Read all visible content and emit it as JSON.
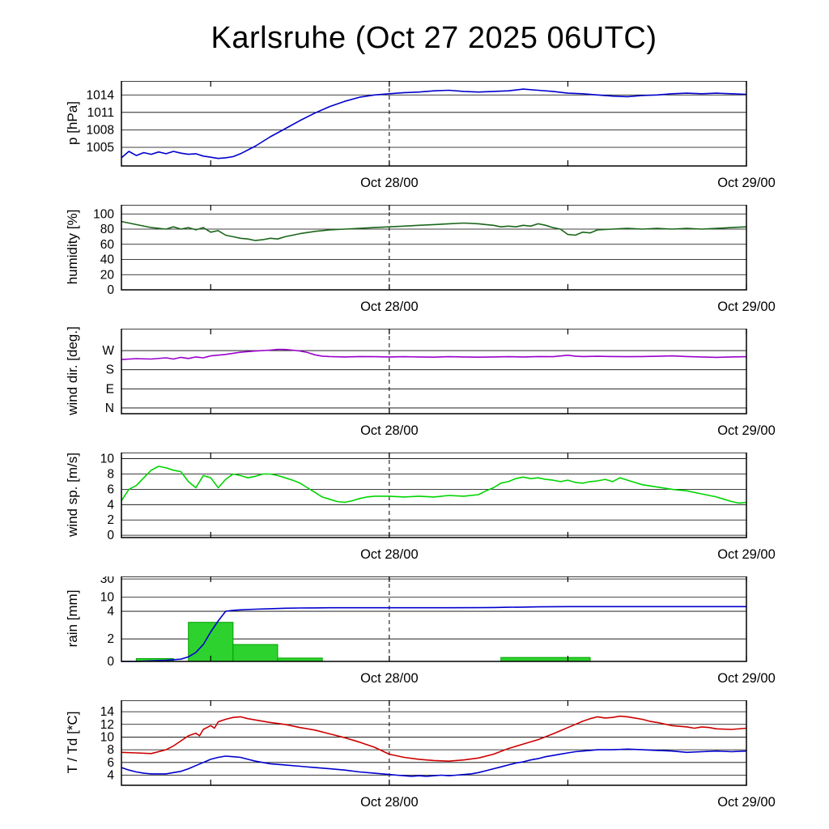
{
  "title": "Karlsruhe (Oct 27 2025 06UTC)",
  "x_axis": {
    "start_hour": 0,
    "end_hour": 42,
    "tick_hours": [
      6,
      18,
      30,
      42
    ],
    "dashed_line_hour": 18,
    "labels": [
      {
        "hour": 18,
        "text": "Oct 28/00"
      },
      {
        "hour": 42,
        "text": "Oct 29/00"
      }
    ]
  },
  "chart_data": [
    {
      "name": "pressure",
      "type": "line",
      "ylabel": "p [hPa]",
      "ylim": [
        1001.8,
        1016.4
      ],
      "yticks": [
        1005,
        1008,
        1011,
        1014
      ],
      "series": [
        {
          "name": "pressure",
          "color": "#0000cd",
          "x": [
            0,
            0.5,
            1,
            1.5,
            2,
            2.5,
            3,
            3.5,
            4,
            4.5,
            5,
            5.5,
            6,
            6.5,
            7,
            7.5,
            8,
            9,
            10,
            11,
            12,
            13,
            14,
            15,
            16,
            17,
            18,
            19,
            20,
            21,
            22,
            23,
            24,
            25,
            26,
            27,
            28,
            29,
            30,
            31,
            32,
            33,
            34,
            35,
            36,
            37,
            38,
            39,
            40,
            41,
            42
          ],
          "values": [
            1003.2,
            1004.3,
            1003.6,
            1004.1,
            1003.8,
            1004.2,
            1003.9,
            1004.3,
            1004.0,
            1003.8,
            1003.9,
            1003.5,
            1003.3,
            1003.1,
            1003.2,
            1003.4,
            1003.9,
            1005.2,
            1006.8,
            1008.2,
            1009.6,
            1010.9,
            1012.0,
            1012.9,
            1013.6,
            1014.0,
            1014.2,
            1014.4,
            1014.5,
            1014.7,
            1014.8,
            1014.6,
            1014.5,
            1014.6,
            1014.7,
            1015.0,
            1014.8,
            1014.6,
            1014.3,
            1014.2,
            1014.0,
            1013.8,
            1013.7,
            1013.9,
            1014.0,
            1014.2,
            1014.3,
            1014.2,
            1014.3,
            1014.2,
            1014.1
          ]
        }
      ]
    },
    {
      "name": "humidity",
      "type": "line",
      "ylabel": "humidity [%]",
      "ylim": [
        0,
        112
      ],
      "yticks": [
        0,
        20,
        40,
        60,
        80,
        100
      ],
      "series": [
        {
          "name": "humidity",
          "color": "#1a661a",
          "x": [
            0,
            1,
            2,
            3,
            3.5,
            4,
            4.5,
            5,
            5.5,
            6,
            6.5,
            7,
            7.5,
            8,
            8.5,
            9,
            9.5,
            10,
            10.5,
            11,
            12,
            13,
            14,
            15,
            16,
            17,
            18,
            19,
            20,
            21,
            22,
            23,
            24,
            24.5,
            25,
            25.5,
            26,
            26.5,
            27,
            27.5,
            28,
            28.5,
            29,
            29.5,
            30,
            30.5,
            31,
            31.5,
            32,
            33,
            34,
            35,
            36,
            37,
            38,
            39,
            40,
            41,
            42
          ],
          "values": [
            90,
            86,
            82,
            80,
            83,
            80,
            82,
            79,
            82,
            76,
            78,
            72,
            70,
            68,
            67,
            65,
            66,
            68,
            67,
            70,
            74,
            77,
            79,
            80,
            81,
            82,
            83,
            84,
            85,
            86,
            87,
            88,
            87,
            86,
            85,
            83,
            84,
            83,
            85,
            84,
            87,
            85,
            82,
            80,
            73,
            72,
            76,
            75,
            79,
            80,
            81,
            80,
            81,
            80,
            81,
            80,
            81,
            82,
            83
          ]
        }
      ]
    },
    {
      "name": "wind-direction",
      "type": "line",
      "ylabel": "wind dir. [deg.]",
      "ylim": [
        -27,
        373
      ],
      "yticks": [
        0,
        90,
        180,
        270
      ],
      "ytick_labels": [
        "N",
        "E",
        "S",
        "W"
      ],
      "series": [
        {
          "name": "wind-direction",
          "color": "#9900cc",
          "x": [
            0,
            1,
            2,
            3,
            3.5,
            4,
            4.5,
            5,
            5.5,
            6,
            7,
            8,
            9,
            10,
            10.5,
            11,
            11.5,
            12,
            12.5,
            13,
            13.5,
            14,
            15,
            16,
            17,
            18,
            19,
            20,
            21,
            22,
            23,
            24,
            25,
            26,
            27,
            28,
            29,
            30,
            30.5,
            31,
            32,
            33,
            34,
            35,
            36,
            37,
            38,
            39,
            40,
            41,
            42
          ],
          "values": [
            228,
            232,
            230,
            236,
            230,
            238,
            233,
            240,
            236,
            245,
            252,
            262,
            268,
            272,
            276,
            275,
            272,
            268,
            261,
            250,
            244,
            242,
            240,
            242,
            241,
            240,
            241,
            240,
            239,
            241,
            240,
            239,
            240,
            241,
            240,
            242,
            241,
            248,
            244,
            242,
            243,
            242,
            241,
            242,
            243,
            245,
            242,
            240,
            238,
            240,
            241
          ]
        }
      ]
    },
    {
      "name": "wind-speed",
      "type": "line",
      "ylabel": "wind sp. [m/s]",
      "ylim": [
        -0.3,
        10.8
      ],
      "yticks": [
        0,
        2,
        4,
        6,
        8,
        10
      ],
      "series": [
        {
          "name": "wind-speed",
          "color": "#00d400",
          "x": [
            0,
            0.5,
            1,
            1.5,
            2,
            2.5,
            3,
            3.5,
            4,
            4.5,
            5,
            5.5,
            6,
            6.5,
            7,
            7.5,
            8,
            8.5,
            9,
            9.5,
            10,
            10.5,
            11,
            11.5,
            12,
            12.5,
            13,
            13.5,
            14,
            14.5,
            15,
            15.5,
            16,
            16.5,
            17,
            18,
            19,
            20,
            21,
            22,
            23,
            24,
            24.5,
            25,
            25.5,
            26,
            26.5,
            27,
            27.5,
            28,
            28.5,
            29,
            29.5,
            30,
            30.5,
            31,
            31.5,
            32,
            32.5,
            33,
            33.5,
            34,
            34.5,
            35,
            36,
            37,
            38,
            39,
            40,
            40.5,
            41,
            41.5,
            42
          ],
          "values": [
            4.5,
            6.0,
            6.5,
            7.5,
            8.5,
            9.0,
            8.8,
            8.5,
            8.3,
            7.0,
            6.2,
            7.8,
            7.5,
            6.2,
            7.3,
            8.0,
            7.8,
            7.5,
            7.7,
            8.0,
            8.0,
            7.8,
            7.5,
            7.2,
            6.8,
            6.2,
            5.6,
            5.0,
            4.7,
            4.4,
            4.3,
            4.5,
            4.8,
            5.0,
            5.1,
            5.1,
            5.0,
            5.1,
            5.0,
            5.2,
            5.1,
            5.3,
            5.8,
            6.2,
            6.8,
            7.0,
            7.4,
            7.6,
            7.4,
            7.5,
            7.3,
            7.2,
            7.0,
            7.2,
            6.9,
            6.8,
            7.0,
            7.1,
            7.3,
            7.0,
            7.5,
            7.2,
            6.9,
            6.6,
            6.3,
            6.0,
            5.8,
            5.4,
            5.0,
            4.7,
            4.4,
            4.2,
            4.3
          ]
        }
      ]
    },
    {
      "name": "rain",
      "type": "line+bar",
      "ylabel": "rain [mm]",
      "yticks": [
        0,
        2,
        4,
        10,
        30
      ],
      "scale_anchors": {
        "values": [
          0,
          2,
          4,
          10,
          30
        ],
        "fracs": [
          0,
          0.265,
          0.59,
          0.755,
          0.97
        ]
      },
      "bar_color": "#2ed22e",
      "bar_edge": "#00a000",
      "bars": [
        {
          "from_hour": 1,
          "to_hour": 3.5,
          "value": 0.25
        },
        {
          "from_hour": 4.5,
          "to_hour": 7.5,
          "value": 3.2
        },
        {
          "from_hour": 7.5,
          "to_hour": 10.5,
          "value": 1.5
        },
        {
          "from_hour": 10.5,
          "to_hour": 13.5,
          "value": 0.3
        },
        {
          "from_hour": 25.5,
          "to_hour": 31.5,
          "value": 0.35
        }
      ],
      "series": [
        {
          "name": "rain-accumulated",
          "color": "#0000cd",
          "x": [
            0,
            1,
            2,
            3,
            4,
            4.5,
            5,
            5.5,
            6,
            6.5,
            7,
            7.5,
            8,
            9,
            10,
            11,
            12,
            13,
            14,
            16,
            18,
            20,
            22,
            24,
            25,
            26,
            27,
            28,
            29,
            30,
            32,
            34,
            36,
            38,
            40,
            42
          ],
          "values": [
            0,
            0,
            0.05,
            0.1,
            0.2,
            0.4,
            0.8,
            1.5,
            2.5,
            3.3,
            4.0,
            4.4,
            4.6,
            4.9,
            5.1,
            5.3,
            5.4,
            5.45,
            5.5,
            5.5,
            5.5,
            5.5,
            5.5,
            5.55,
            5.6,
            5.7,
            5.8,
            5.9,
            5.95,
            6.0,
            6.0,
            6.0,
            6.0,
            6.0,
            6.0,
            6.0
          ]
        }
      ]
    },
    {
      "name": "temperature-dewpoint",
      "type": "line",
      "ylabel": "T / Td [*C]",
      "ylim": [
        2.4,
        15.8
      ],
      "yticks": [
        4,
        6,
        8,
        10,
        12,
        14
      ],
      "series": [
        {
          "name": "temperature",
          "color": "#cc0000",
          "x": [
            0,
            1,
            2,
            3,
            3.5,
            4,
            4.5,
            5,
            5.25,
            5.5,
            6,
            6.25,
            6.5,
            7,
            7.5,
            8,
            8.5,
            9,
            10,
            11,
            12,
            13,
            14,
            15,
            16,
            17,
            18,
            19,
            20,
            21,
            22,
            23,
            24,
            25,
            26,
            27,
            28,
            29,
            29.5,
            30,
            30.5,
            31,
            31.5,
            32,
            32.5,
            33,
            33.5,
            34,
            34.5,
            35,
            35.5,
            36,
            37,
            38,
            38.5,
            39,
            39.5,
            40,
            41,
            42
          ],
          "values": [
            7.6,
            7.5,
            7.4,
            8.0,
            8.6,
            9.4,
            10.2,
            10.6,
            10.2,
            11.2,
            11.8,
            11.4,
            12.4,
            12.8,
            13.1,
            13.2,
            12.9,
            12.7,
            12.3,
            12.0,
            11.5,
            11.1,
            10.5,
            9.9,
            9.2,
            8.4,
            7.3,
            6.8,
            6.5,
            6.3,
            6.2,
            6.4,
            6.7,
            7.3,
            8.2,
            8.9,
            9.6,
            10.5,
            11.0,
            11.5,
            12.0,
            12.5,
            12.9,
            13.2,
            13.0,
            13.1,
            13.3,
            13.2,
            13.0,
            12.8,
            12.5,
            12.3,
            11.8,
            11.6,
            11.4,
            11.6,
            11.5,
            11.3,
            11.2,
            11.4
          ]
        },
        {
          "name": "dewpoint",
          "color": "#0000cd",
          "x": [
            0,
            0.5,
            1,
            1.5,
            2,
            3,
            3.5,
            4,
            4.5,
            5,
            5.5,
            6,
            6.5,
            7,
            7.5,
            8,
            8.5,
            9,
            9.5,
            10,
            11,
            12,
            13,
            14,
            15,
            16,
            17,
            18,
            18.5,
            19,
            19.5,
            20,
            20.5,
            21,
            21.5,
            22,
            22.5,
            23,
            23.5,
            24,
            24.5,
            25,
            25.5,
            26,
            26.5,
            27,
            27.5,
            28,
            28.5,
            29,
            29.5,
            30,
            30.5,
            31,
            31.5,
            32,
            33,
            34,
            35,
            36,
            37,
            38,
            39,
            40,
            41,
            42
          ],
          "values": [
            5.2,
            4.8,
            4.5,
            4.3,
            4.2,
            4.2,
            4.4,
            4.6,
            5.0,
            5.5,
            6.0,
            6.5,
            6.8,
            7.0,
            6.9,
            6.8,
            6.5,
            6.2,
            6.0,
            5.8,
            5.6,
            5.4,
            5.2,
            5.0,
            4.8,
            4.5,
            4.3,
            4.1,
            4.0,
            3.9,
            3.8,
            3.9,
            3.8,
            3.9,
            4.0,
            3.9,
            4.0,
            4.1,
            4.2,
            4.4,
            4.7,
            5.0,
            5.3,
            5.6,
            5.9,
            6.1,
            6.4,
            6.6,
            6.9,
            7.1,
            7.3,
            7.5,
            7.7,
            7.8,
            7.9,
            8.0,
            8.0,
            8.1,
            8.0,
            7.9,
            7.8,
            7.6,
            7.7,
            7.8,
            7.7,
            7.8
          ]
        }
      ]
    }
  ]
}
